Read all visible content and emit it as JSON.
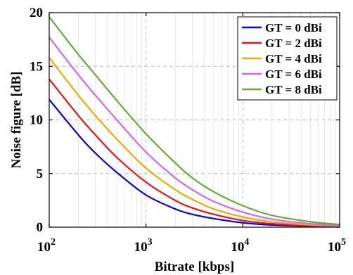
{
  "chart_data": {
    "type": "line",
    "title": "",
    "xlabel": "Bitrate [kbps]",
    "ylabel": "Noise figure [dB]",
    "xscale": "log",
    "xlim": [
      100,
      100000
    ],
    "ylim": [
      0,
      20
    ],
    "x_ticks": [
      {
        "value": 100,
        "base": "10",
        "exp": "2"
      },
      {
        "value": 1000,
        "base": "10",
        "exp": "3"
      },
      {
        "value": 10000,
        "base": "10",
        "exp": "4"
      },
      {
        "value": 100000,
        "base": "10",
        "exp": "5"
      }
    ],
    "y_ticks": [
      "0",
      "5",
      "10",
      "15",
      "20"
    ],
    "grid": true,
    "legend_position": "top-right",
    "x": [
      100,
      200,
      300,
      500,
      1000,
      2000,
      3000,
      5000,
      10000,
      20000,
      50000,
      100000
    ],
    "series": [
      {
        "name": "GT = 0 dBi",
        "color": "#0000ee",
        "values": [
          11.9,
          8.6,
          6.9,
          5.1,
          3.0,
          1.7,
          1.2,
          0.8,
          0.41,
          0.2,
          0.09,
          0.04
        ]
      },
      {
        "name": "GT = 2 dBi",
        "color": "#ee1111",
        "values": [
          13.8,
          10.4,
          8.6,
          6.5,
          4.2,
          2.5,
          1.8,
          1.2,
          0.62,
          0.32,
          0.13,
          0.07
        ]
      },
      {
        "name": "GT = 4 dBi",
        "color": "#eeaa00",
        "values": [
          15.8,
          12.3,
          10.4,
          8.2,
          5.5,
          3.5,
          2.6,
          1.7,
          0.95,
          0.5,
          0.21,
          0.1
        ]
      },
      {
        "name": "GT = 6 dBi",
        "color": "#cc66ff",
        "values": [
          17.7,
          14.2,
          12.3,
          10.0,
          7.0,
          4.6,
          3.5,
          2.4,
          1.4,
          0.75,
          0.32,
          0.16
        ]
      },
      {
        "name": "GT = 8 dBi",
        "color": "#66aa33",
        "values": [
          19.6,
          16.1,
          14.2,
          11.8,
          8.7,
          6.0,
          4.6,
          3.3,
          2.0,
          1.1,
          0.5,
          0.25
        ]
      }
    ]
  }
}
